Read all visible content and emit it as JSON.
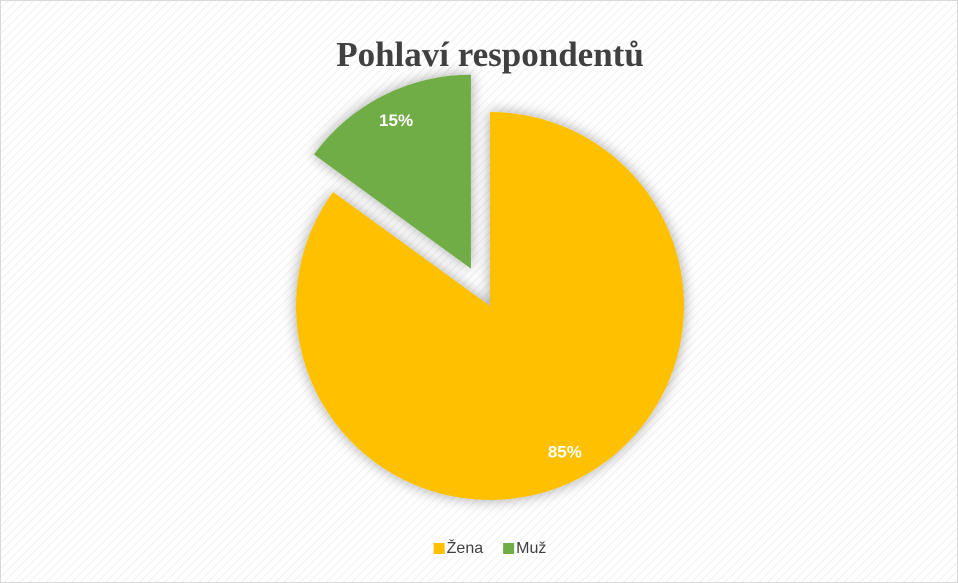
{
  "chart_data": {
    "type": "pie",
    "title": "Pohlaví respondentů",
    "categories": [
      "Žena",
      "Muž"
    ],
    "values": [
      85,
      15
    ],
    "value_labels": [
      "85%",
      "15%"
    ],
    "colors": [
      "#FFC000",
      "#70AD47"
    ],
    "exploded": [
      false,
      true
    ],
    "legend": "bottom"
  }
}
